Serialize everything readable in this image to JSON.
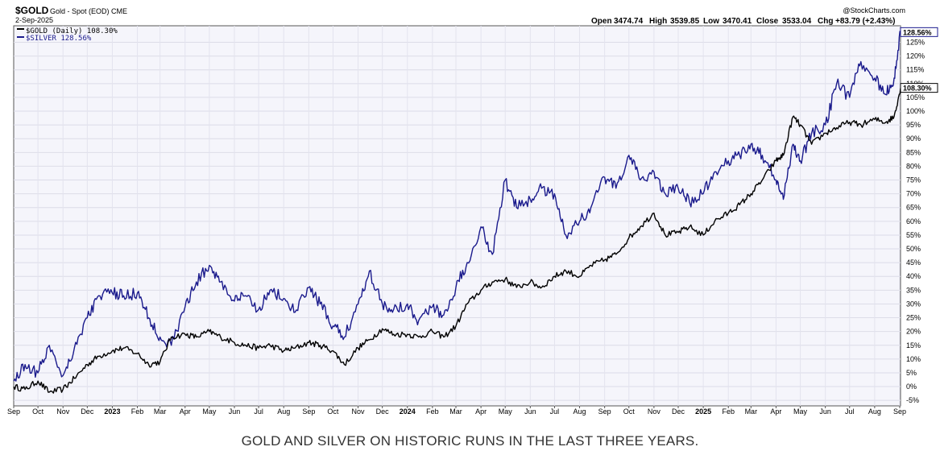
{
  "header": {
    "symbol": "$GOLD",
    "description": "Gold - Spot (EOD) CME",
    "date": "2-Sep-2025",
    "brand": "@StockCharts.com",
    "ohlc": {
      "open_label": "Open",
      "open": "3474.74",
      "high_label": "High",
      "high": "3539.85",
      "low_label": "Low",
      "low": "3470.41",
      "close_label": "Close",
      "close": "3533.04",
      "chg_label": "Chg",
      "chg": "+83.79 (+2.43%)"
    }
  },
  "legend": {
    "gold": "$GOLD (Daily) 108.30%",
    "silver": "$SILVER 128.56%"
  },
  "badges": {
    "silver": "128.56%",
    "gold": "108.30%"
  },
  "caption": "GOLD AND SILVER ON HISTORIC RUNS IN THE LAST THREE YEARS.",
  "colors": {
    "gold_line": "#000000",
    "silver_line": "#1a1a8c",
    "plot_bg": "#f5f5fb",
    "grid": "#d9d9e6",
    "frame": "#555555"
  },
  "chart_data": {
    "type": "line",
    "y_unit": "% change",
    "ylim": [
      -7,
      131
    ],
    "y_ticks": [
      -5,
      0,
      5,
      10,
      15,
      20,
      25,
      30,
      35,
      40,
      45,
      50,
      55,
      60,
      65,
      70,
      75,
      80,
      85,
      90,
      95,
      100,
      105,
      110,
      115,
      120,
      125
    ],
    "y_tick_labels": [
      "-5%",
      "0%",
      "5%",
      "10%",
      "15%",
      "20%",
      "25%",
      "30%",
      "35%",
      "40%",
      "45%",
      "50%",
      "55%",
      "60%",
      "65%",
      "70%",
      "75%",
      "80%",
      "85%",
      "90%",
      "95%",
      "100%",
      "105%",
      "110%",
      "115%",
      "120%",
      "125%"
    ],
    "xlim": [
      "2022-09-01",
      "2025-09-02"
    ],
    "x_ticks": [
      {
        "date": "2022-09-01",
        "label": "Sep",
        "year": false
      },
      {
        "date": "2022-10-01",
        "label": "Oct",
        "year": false
      },
      {
        "date": "2022-11-01",
        "label": "Nov",
        "year": false
      },
      {
        "date": "2022-12-01",
        "label": "Dec",
        "year": false
      },
      {
        "date": "2023-01-01",
        "label": "2023",
        "year": true
      },
      {
        "date": "2023-02-01",
        "label": "Feb",
        "year": false
      },
      {
        "date": "2023-03-01",
        "label": "Mar",
        "year": false
      },
      {
        "date": "2023-04-01",
        "label": "Apr",
        "year": false
      },
      {
        "date": "2023-05-01",
        "label": "May",
        "year": false
      },
      {
        "date": "2023-06-01",
        "label": "Jun",
        "year": false
      },
      {
        "date": "2023-07-01",
        "label": "Jul",
        "year": false
      },
      {
        "date": "2023-08-01",
        "label": "Aug",
        "year": false
      },
      {
        "date": "2023-09-01",
        "label": "Sep",
        "year": false
      },
      {
        "date": "2023-10-01",
        "label": "Oct",
        "year": false
      },
      {
        "date": "2023-11-01",
        "label": "Nov",
        "year": false
      },
      {
        "date": "2023-12-01",
        "label": "Dec",
        "year": false
      },
      {
        "date": "2024-01-01",
        "label": "2024",
        "year": true
      },
      {
        "date": "2024-02-01",
        "label": "Feb",
        "year": false
      },
      {
        "date": "2024-03-01",
        "label": "Mar",
        "year": false
      },
      {
        "date": "2024-04-01",
        "label": "Apr",
        "year": false
      },
      {
        "date": "2024-05-01",
        "label": "May",
        "year": false
      },
      {
        "date": "2024-06-01",
        "label": "Jun",
        "year": false
      },
      {
        "date": "2024-07-01",
        "label": "Jul",
        "year": false
      },
      {
        "date": "2024-08-01",
        "label": "Aug",
        "year": false
      },
      {
        "date": "2024-09-01",
        "label": "Sep",
        "year": false
      },
      {
        "date": "2024-10-01",
        "label": "Oct",
        "year": false
      },
      {
        "date": "2024-11-01",
        "label": "Nov",
        "year": false
      },
      {
        "date": "2024-12-01",
        "label": "Dec",
        "year": false
      },
      {
        "date": "2025-01-01",
        "label": "2025",
        "year": true
      },
      {
        "date": "2025-02-01",
        "label": "Feb",
        "year": false
      },
      {
        "date": "2025-03-01",
        "label": "Mar",
        "year": false
      },
      {
        "date": "2025-04-01",
        "label": "Apr",
        "year": false
      },
      {
        "date": "2025-05-01",
        "label": "May",
        "year": false
      },
      {
        "date": "2025-06-01",
        "label": "Jun",
        "year": false
      },
      {
        "date": "2025-07-01",
        "label": "Jul",
        "year": false
      },
      {
        "date": "2025-08-01",
        "label": "Aug",
        "year": false
      },
      {
        "date": "2025-09-01",
        "label": "Sep",
        "year": false
      }
    ],
    "series": [
      {
        "name": "$GOLD (Daily)",
        "color": "#000000",
        "x": [
          "2022-09-01",
          "2022-09-15",
          "2022-10-01",
          "2022-10-15",
          "2022-11-01",
          "2022-11-15",
          "2022-12-01",
          "2022-12-15",
          "2023-01-01",
          "2023-01-15",
          "2023-02-01",
          "2023-02-15",
          "2023-03-01",
          "2023-03-15",
          "2023-04-01",
          "2023-04-15",
          "2023-05-01",
          "2023-05-15",
          "2023-06-01",
          "2023-06-15",
          "2023-07-01",
          "2023-07-15",
          "2023-08-01",
          "2023-08-15",
          "2023-09-01",
          "2023-09-15",
          "2023-10-01",
          "2023-10-15",
          "2023-11-01",
          "2023-11-15",
          "2023-12-01",
          "2023-12-15",
          "2024-01-01",
          "2024-01-15",
          "2024-02-01",
          "2024-02-15",
          "2024-03-01",
          "2024-03-15",
          "2024-04-01",
          "2024-04-15",
          "2024-05-01",
          "2024-05-15",
          "2024-06-01",
          "2024-06-15",
          "2024-07-01",
          "2024-07-15",
          "2024-08-01",
          "2024-08-15",
          "2024-09-01",
          "2024-09-15",
          "2024-10-01",
          "2024-10-15",
          "2024-11-01",
          "2024-11-15",
          "2024-12-01",
          "2024-12-15",
          "2025-01-01",
          "2025-01-15",
          "2025-02-01",
          "2025-02-15",
          "2025-03-01",
          "2025-03-15",
          "2025-04-01",
          "2025-04-10",
          "2025-04-22",
          "2025-05-01",
          "2025-05-15",
          "2025-06-01",
          "2025-06-15",
          "2025-07-01",
          "2025-07-15",
          "2025-08-01",
          "2025-08-15",
          "2025-08-25",
          "2025-09-02"
        ],
        "values": [
          0,
          -1,
          2,
          -2,
          -1,
          3,
          8,
          11,
          13,
          14,
          12,
          8,
          9,
          18,
          19,
          18,
          20,
          18,
          16,
          15,
          14,
          15,
          13,
          14,
          16,
          15,
          13,
          8,
          14,
          17,
          21,
          19,
          19,
          18,
          20,
          18,
          22,
          30,
          35,
          38,
          39,
          36,
          38,
          36,
          40,
          42,
          40,
          44,
          46,
          48,
          54,
          58,
          63,
          55,
          56,
          58,
          55,
          60,
          63,
          66,
          70,
          75,
          82,
          84,
          98,
          95,
          88,
          92,
          94,
          96,
          95,
          97,
          96,
          98,
          108.3
        ]
      },
      {
        "name": "$SILVER",
        "color": "#1a1a8c",
        "x": [
          "2022-09-01",
          "2022-09-15",
          "2022-10-01",
          "2022-10-15",
          "2022-11-01",
          "2022-11-15",
          "2022-12-01",
          "2022-12-15",
          "2023-01-01",
          "2023-01-15",
          "2023-02-01",
          "2023-02-15",
          "2023-03-01",
          "2023-03-15",
          "2023-04-01",
          "2023-04-15",
          "2023-05-01",
          "2023-05-15",
          "2023-06-01",
          "2023-06-15",
          "2023-07-01",
          "2023-07-15",
          "2023-08-01",
          "2023-08-15",
          "2023-09-01",
          "2023-09-15",
          "2023-10-01",
          "2023-10-15",
          "2023-11-01",
          "2023-11-15",
          "2023-12-01",
          "2023-12-15",
          "2024-01-01",
          "2024-01-15",
          "2024-02-01",
          "2024-02-15",
          "2024-03-01",
          "2024-03-15",
          "2024-04-01",
          "2024-04-15",
          "2024-05-01",
          "2024-05-15",
          "2024-06-01",
          "2024-06-15",
          "2024-07-01",
          "2024-07-15",
          "2024-08-01",
          "2024-08-15",
          "2024-09-01",
          "2024-09-15",
          "2024-10-01",
          "2024-10-15",
          "2024-11-01",
          "2024-11-15",
          "2024-12-01",
          "2024-12-15",
          "2025-01-01",
          "2025-01-15",
          "2025-02-01",
          "2025-02-15",
          "2025-03-01",
          "2025-03-15",
          "2025-04-01",
          "2025-04-10",
          "2025-04-22",
          "2025-05-01",
          "2025-05-15",
          "2025-06-01",
          "2025-06-15",
          "2025-07-01",
          "2025-07-15",
          "2025-08-01",
          "2025-08-15",
          "2025-08-25",
          "2025-09-02"
        ],
        "values": [
          2,
          8,
          5,
          15,
          4,
          14,
          25,
          33,
          34,
          33,
          34,
          25,
          18,
          15,
          29,
          38,
          44,
          38,
          31,
          33,
          28,
          35,
          32,
          27,
          36,
          30,
          22,
          18,
          30,
          42,
          30,
          28,
          30,
          24,
          29,
          26,
          36,
          45,
          58,
          48,
          75,
          65,
          68,
          72,
          70,
          55,
          60,
          65,
          76,
          72,
          84,
          75,
          78,
          70,
          72,
          67,
          70,
          78,
          82,
          84,
          88,
          84,
          75,
          68,
          88,
          82,
          92,
          95,
          110,
          105,
          118,
          112,
          106,
          112,
          128.56
        ]
      }
    ]
  }
}
